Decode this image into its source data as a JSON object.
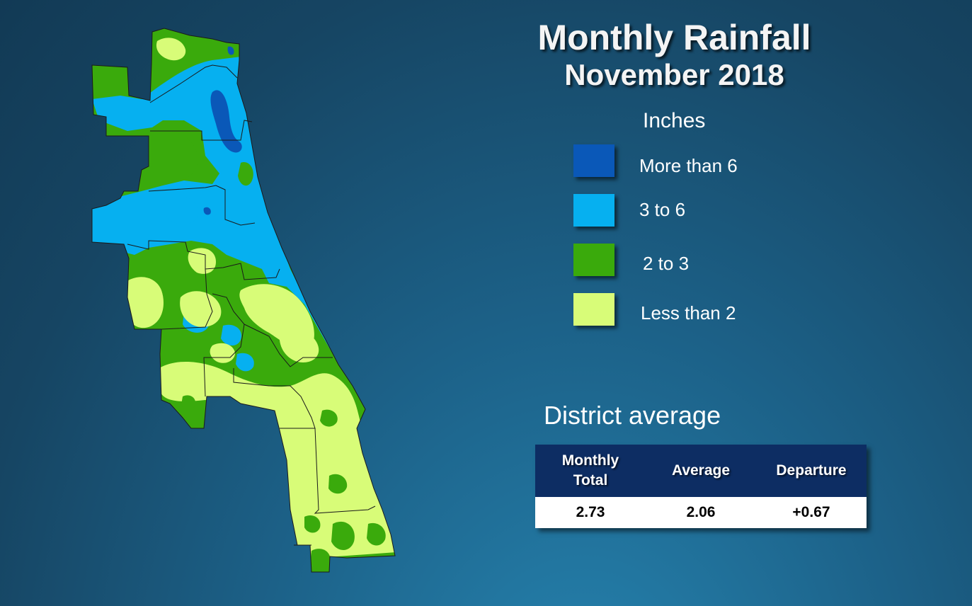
{
  "title": {
    "main": "Monthly Rainfall",
    "sub": "November 2018"
  },
  "legend": {
    "heading": "Inches",
    "items": [
      {
        "label": "More than 6",
        "color": "#0a58b8"
      },
      {
        "label": "3 to 6",
        "color": "#06b0f0"
      },
      {
        "label": "2 to 3",
        "color": "#3aaa0c"
      },
      {
        "label": "Less than 2",
        "color": "#d8fc78"
      }
    ]
  },
  "district": {
    "heading": "District average",
    "columns": [
      "Monthly Total",
      "Average",
      "Departure"
    ],
    "values": [
      "2.73",
      "2.06",
      "+0.67"
    ]
  },
  "map": {
    "region": "district-rainfall-map",
    "colors": {
      "boundary": "#1a1a1a"
    }
  }
}
